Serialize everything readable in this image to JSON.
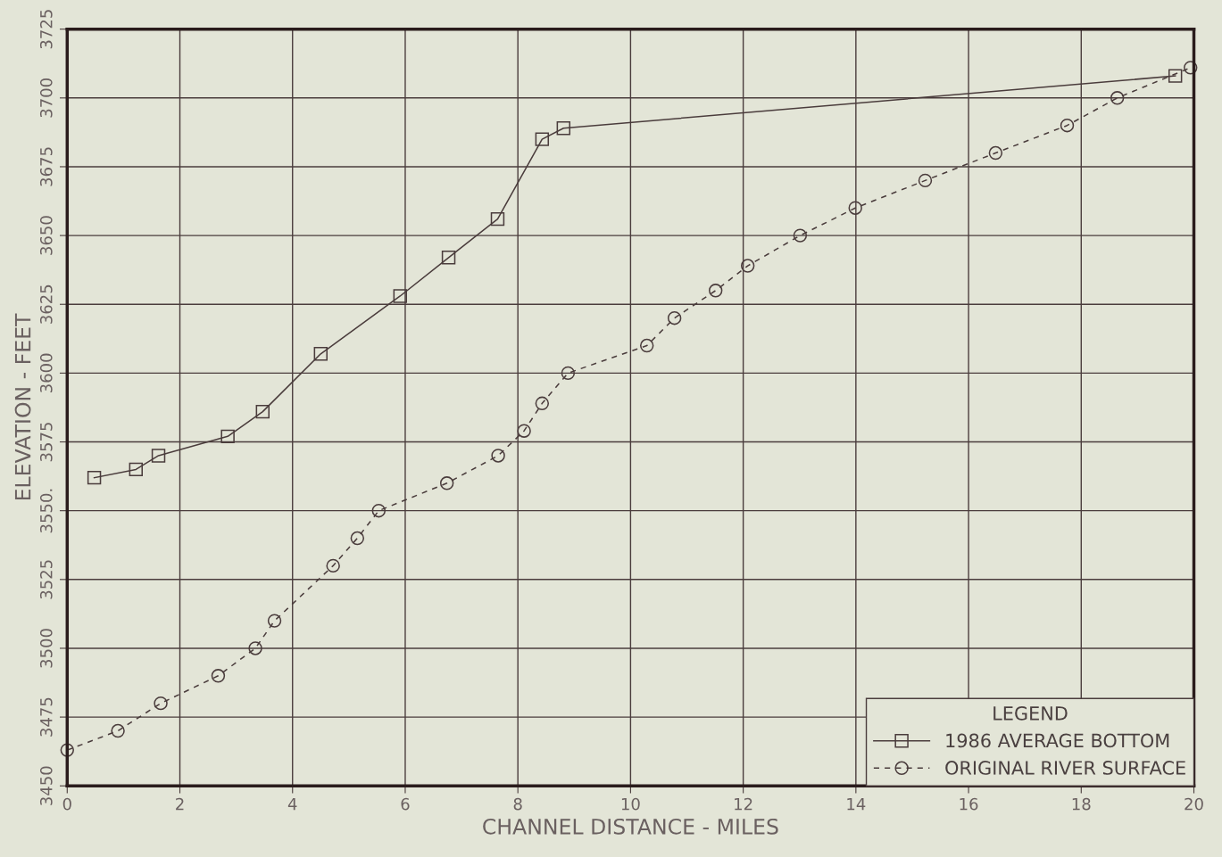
{
  "chart_data": {
    "type": "line",
    "xlabel": "CHANNEL DISTANCE - MILES",
    "ylabel": "ELEVATION - FEET",
    "legend_title": "LEGEND",
    "legend": "bottom right",
    "grid": true,
    "xlim": [
      0,
      20
    ],
    "xticks": [
      0,
      2,
      4,
      6,
      8,
      10,
      12,
      14,
      16,
      18,
      20
    ],
    "ylim": [
      3450,
      3725
    ],
    "yticks": [
      3450,
      3475,
      3500,
      3525,
      {
        "value": 3550,
        "label": "3550."
      },
      3575,
      3600,
      3625,
      3650,
      3675,
      3700,
      3725
    ],
    "series": [
      {
        "name": "1986 AVERAGE BOTTOM",
        "color": "#4a3c3c",
        "marker": "square",
        "line_style": "solid",
        "x": [
          0.48,
          1.22,
          1.62,
          2.85,
          3.47,
          4.5,
          5.91,
          6.77,
          7.64,
          8.43,
          8.81,
          19.67
        ],
        "values": [
          3562,
          3565,
          3570,
          3577,
          3586,
          3607,
          3628,
          3642,
          3656,
          3685,
          3689,
          3708
        ]
      },
      {
        "name": "ORIGINAL RIVER SURFACE",
        "color": "#4a3c3c",
        "marker": "circle",
        "line_style": "dashed",
        "x": [
          0,
          0.9,
          1.66,
          2.68,
          3.34,
          3.68,
          4.72,
          5.15,
          5.53,
          6.74,
          7.65,
          8.11,
          8.43,
          8.89,
          10.29,
          10.78,
          11.51,
          12.08,
          13.01,
          13.99,
          15.23,
          16.48,
          17.75,
          18.64,
          19.94
        ],
        "values": [
          3463,
          3470,
          3480,
          3490,
          3500,
          3510,
          3530,
          3540,
          3550,
          3560,
          3570,
          3579,
          3589,
          3600,
          3610,
          3620,
          3630,
          3639,
          3650,
          3660,
          3670,
          3680,
          3690,
          3700,
          3711
        ]
      }
    ]
  }
}
